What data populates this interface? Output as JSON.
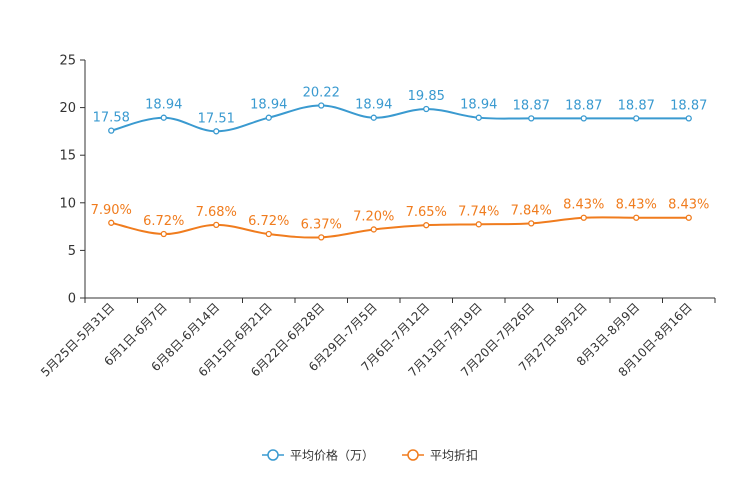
{
  "chart_data": {
    "type": "line",
    "categories": [
      "5月25日-5月31日",
      "6月1日-6月7日",
      "6月8日-6月14日",
      "6月15日-6月21日",
      "6月22日-6月28日",
      "6月29日-7月5日",
      "7月6日-7月12日",
      "7月13日-7月19日",
      "7月20日-7月26日",
      "7月27日-8月2日",
      "8月3日-8月9日",
      "8月10日-8月16日"
    ],
    "ylim": [
      0,
      25
    ],
    "yticks": [
      0,
      5,
      10,
      15,
      20,
      25
    ],
    "grid": false,
    "legend_position": "bottom-center",
    "series": [
      {
        "name": "平均价格（万）",
        "color": "#3a9ad0",
        "values": [
          17.58,
          18.94,
          17.51,
          18.94,
          20.22,
          18.94,
          19.85,
          18.94,
          18.87,
          18.87,
          18.87,
          18.87
        ],
        "labels": [
          "17.58",
          "18.94",
          "17.51",
          "18.94",
          "20.22",
          "18.94",
          "19.85",
          "18.94",
          "18.87",
          "18.87",
          "18.87",
          "18.87"
        ]
      },
      {
        "name": "平均折扣",
        "color": "#f07c1e",
        "values": [
          7.9,
          6.72,
          7.68,
          6.72,
          6.37,
          7.2,
          7.65,
          7.74,
          7.84,
          8.43,
          8.43,
          8.43
        ],
        "labels": [
          "7.90%",
          "6.72%",
          "7.68%",
          "6.72%",
          "6.37%",
          "7.20%",
          "7.65%",
          "7.74%",
          "7.84%",
          "8.43%",
          "8.43%",
          "8.43%"
        ]
      }
    ]
  }
}
